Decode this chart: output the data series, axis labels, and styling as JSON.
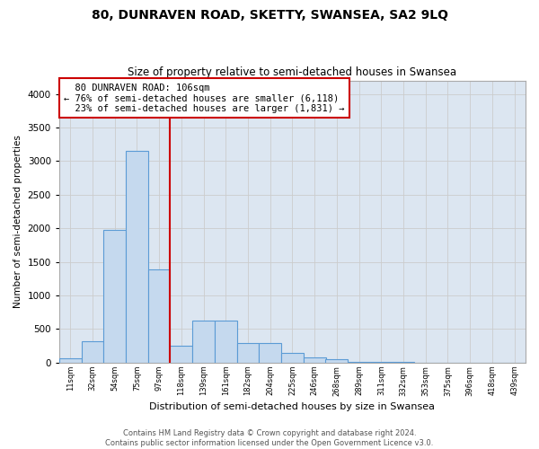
{
  "title": "80, DUNRAVEN ROAD, SKETTY, SWANSEA, SA2 9LQ",
  "subtitle": "Size of property relative to semi-detached houses in Swansea",
  "xlabel": "Distribution of semi-detached houses by size in Swansea",
  "ylabel": "Number of semi-detached properties",
  "footer_line1": "Contains HM Land Registry data © Crown copyright and database right 2024.",
  "footer_line2": "Contains public sector information licensed under the Open Government Licence v3.0.",
  "categories": [
    "11sqm",
    "32sqm",
    "54sqm",
    "75sqm",
    "97sqm",
    "118sqm",
    "139sqm",
    "161sqm",
    "182sqm",
    "204sqm",
    "225sqm",
    "246sqm",
    "268sqm",
    "289sqm",
    "311sqm",
    "332sqm",
    "353sqm",
    "375sqm",
    "396sqm",
    "418sqm",
    "439sqm"
  ],
  "values": [
    60,
    320,
    1970,
    3150,
    1390,
    250,
    630,
    630,
    290,
    290,
    140,
    80,
    50,
    10,
    10,
    10,
    5,
    5,
    5,
    5,
    5
  ],
  "bar_color": "#c5d9ee",
  "bar_edge_color": "#5b9bd5",
  "property_label": "80 DUNRAVEN ROAD: 106sqm",
  "pct_smaller": 76,
  "count_smaller": 6118,
  "pct_larger": 23,
  "count_larger": 1831,
  "red_line_x": 4.5,
  "annotation_box_color": "#cc0000",
  "ylim": [
    0,
    4200
  ],
  "yticks": [
    0,
    500,
    1000,
    1500,
    2000,
    2500,
    3000,
    3500,
    4000
  ],
  "grid_color": "#cccccc",
  "bg_color": "#dce6f1"
}
